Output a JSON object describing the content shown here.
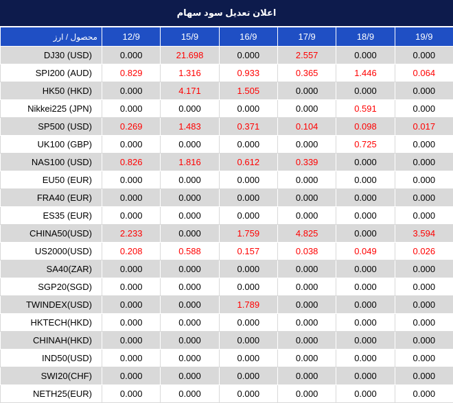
{
  "title": "اعلان تعديل سود سهام",
  "header": {
    "instrument_label": "محصول / ارز",
    "days": [
      "12/9",
      "15/9",
      "16/9",
      "17/9",
      "18/9",
      "19/9"
    ]
  },
  "colors": {
    "title_bg": "#0d1b4c",
    "header_bg": "#1f4fc4",
    "row_alt_bg": "#d9d9d9",
    "nonzero_text": "#ff0000",
    "zero_text": "#000000"
  },
  "rows": [
    {
      "instrument": "DJ30 (USD)",
      "values": [
        "0.000",
        "21.698",
        "0.000",
        "2.557",
        "0.000",
        "0.000"
      ]
    },
    {
      "instrument": "SPI200 (AUD)",
      "values": [
        "0.829",
        "1.316",
        "0.933",
        "0.365",
        "1.446",
        "0.064"
      ]
    },
    {
      "instrument": "HK50 (HKD)",
      "values": [
        "0.000",
        "4.171",
        "1.505",
        "0.000",
        "0.000",
        "0.000"
      ]
    },
    {
      "instrument": "Nikkei225 (JPN)",
      "values": [
        "0.000",
        "0.000",
        "0.000",
        "0.000",
        "0.591",
        "0.000"
      ]
    },
    {
      "instrument": "SP500 (USD)",
      "values": [
        "0.269",
        "1.483",
        "0.371",
        "0.104",
        "0.098",
        "0.017"
      ]
    },
    {
      "instrument": "UK100 (GBP)",
      "values": [
        "0.000",
        "0.000",
        "0.000",
        "0.000",
        "0.725",
        "0.000"
      ]
    },
    {
      "instrument": "NAS100 (USD)",
      "values": [
        "0.826",
        "1.816",
        "0.612",
        "0.339",
        "0.000",
        "0.000"
      ]
    },
    {
      "instrument": "EU50 (EUR)",
      "values": [
        "0.000",
        "0.000",
        "0.000",
        "0.000",
        "0.000",
        "0.000"
      ]
    },
    {
      "instrument": "FRA40 (EUR)",
      "values": [
        "0.000",
        "0.000",
        "0.000",
        "0.000",
        "0.000",
        "0.000"
      ]
    },
    {
      "instrument": "ES35 (EUR)",
      "values": [
        "0.000",
        "0.000",
        "0.000",
        "0.000",
        "0.000",
        "0.000"
      ]
    },
    {
      "instrument": "CHINA50(USD)",
      "values": [
        "2.233",
        "0.000",
        "1.759",
        "4.825",
        "0.000",
        "3.594"
      ]
    },
    {
      "instrument": "US2000(USD)",
      "values": [
        "0.208",
        "0.588",
        "0.157",
        "0.038",
        "0.049",
        "0.026"
      ]
    },
    {
      "instrument": "SA40(ZAR)",
      "values": [
        "0.000",
        "0.000",
        "0.000",
        "0.000",
        "0.000",
        "0.000"
      ]
    },
    {
      "instrument": "SGP20(SGD)",
      "values": [
        "0.000",
        "0.000",
        "0.000",
        "0.000",
        "0.000",
        "0.000"
      ]
    },
    {
      "instrument": "TWINDEX(USD)",
      "values": [
        "0.000",
        "0.000",
        "1.789",
        "0.000",
        "0.000",
        "0.000"
      ]
    },
    {
      "instrument": "HKTECH(HKD)",
      "values": [
        "0.000",
        "0.000",
        "0.000",
        "0.000",
        "0.000",
        "0.000"
      ]
    },
    {
      "instrument": "CHINAH(HKD)",
      "values": [
        "0.000",
        "0.000",
        "0.000",
        "0.000",
        "0.000",
        "0.000"
      ]
    },
    {
      "instrument": "IND50(USD)",
      "values": [
        "0.000",
        "0.000",
        "0.000",
        "0.000",
        "0.000",
        "0.000"
      ]
    },
    {
      "instrument": "SWI20(CHF)",
      "values": [
        "0.000",
        "0.000",
        "0.000",
        "0.000",
        "0.000",
        "0.000"
      ]
    },
    {
      "instrument": "NETH25(EUR)",
      "values": [
        "0.000",
        "0.000",
        "0.000",
        "0.000",
        "0.000",
        "0.000"
      ]
    }
  ]
}
